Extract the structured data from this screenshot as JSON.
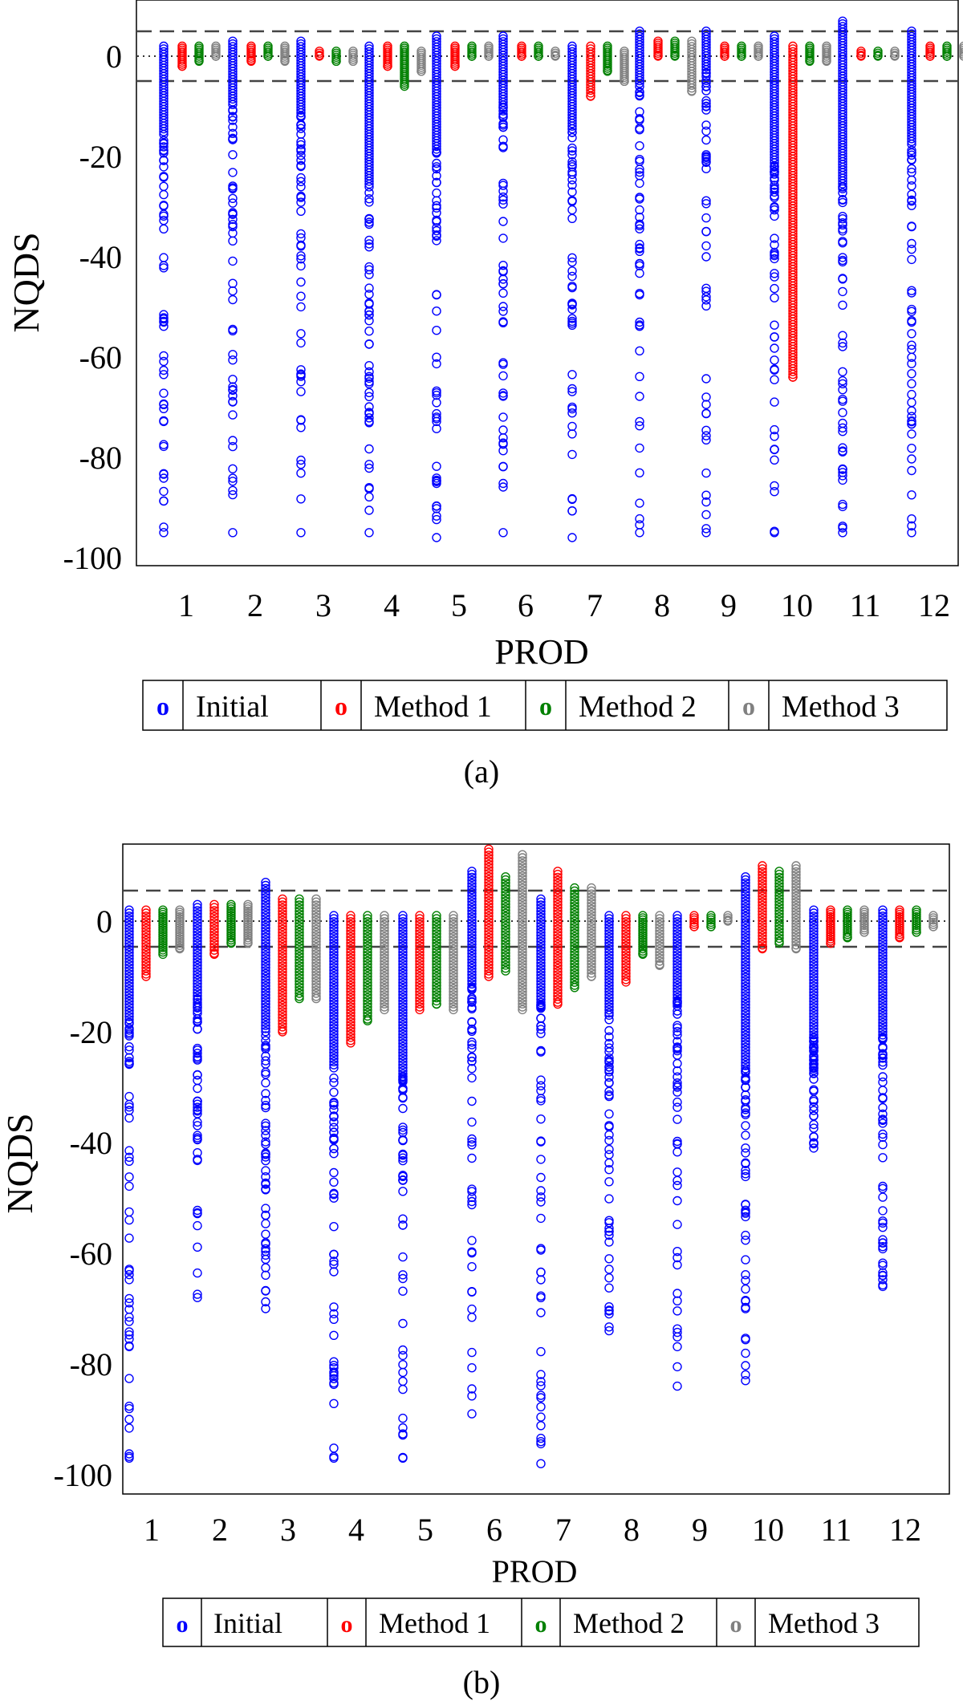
{
  "figure": {
    "panel_labels": [
      "(a)",
      "(b)"
    ]
  },
  "legend": {
    "entries": [
      "Initial",
      "Method 1",
      "Method 2",
      "Method 3"
    ],
    "markers": [
      "o",
      "o",
      "o",
      "o"
    ],
    "colors": [
      "#0000ff",
      "#ff0000",
      "#008000",
      "#808080"
    ]
  },
  "chart_data": [
    {
      "type": "scatter",
      "title": "",
      "xlabel": "PROD",
      "ylabel": "NQDS",
      "ylim": [
        -100,
        10
      ],
      "yticks": [
        0,
        -20,
        -40,
        -60,
        -80,
        -100
      ],
      "categories": [
        "1",
        "2",
        "3",
        "4",
        "5",
        "6",
        "7",
        "8",
        "9",
        "10",
        "11",
        "12"
      ],
      "reference_lines": {
        "dotted": [
          0
        ],
        "dashed": [
          5,
          -5
        ]
      },
      "grid": false,
      "legend_position": "bottom",
      "series": [
        {
          "name": "Initial",
          "color": "#0000ff",
          "min": [
            -95,
            -95,
            -95,
            -95,
            -96,
            -95,
            -96,
            -95,
            -95,
            -95,
            -95,
            -95
          ],
          "max": [
            2,
            3,
            3,
            2,
            4,
            4,
            2,
            5,
            5,
            4,
            7,
            5
          ],
          "dense_to": [
            -16,
            -10,
            -12,
            -26,
            -19,
            -10,
            -15,
            -5,
            -3,
            -22,
            -26,
            -18
          ]
        },
        {
          "name": "Method 1",
          "color": "#ff0000",
          "min": [
            -2,
            -1,
            0,
            -2,
            -2,
            0,
            -8,
            0,
            0,
            -64,
            0,
            0
          ],
          "max": [
            2,
            2,
            1,
            2,
            2,
            2,
            2,
            3,
            2,
            2,
            1,
            2
          ]
        },
        {
          "name": "Method 2",
          "color": "#008000",
          "min": [
            -1,
            0,
            -1,
            -6,
            0,
            0,
            -3,
            0,
            0,
            -1,
            0,
            0
          ],
          "max": [
            2,
            2,
            1,
            2,
            2,
            2,
            2,
            3,
            2,
            2,
            1,
            2
          ]
        },
        {
          "name": "Method 3",
          "color": "#808080",
          "min": [
            0,
            -1,
            -1,
            -3,
            0,
            0,
            -5,
            -7,
            0,
            -1,
            0,
            0
          ],
          "max": [
            2,
            2,
            1,
            1,
            2,
            1,
            1,
            3,
            2,
            2,
            1,
            2
          ]
        }
      ]
    },
    {
      "type": "scatter",
      "title": "",
      "xlabel": "PROD",
      "ylabel": "NQDS",
      "ylim": [
        -100,
        13
      ],
      "yticks": [
        0,
        -20,
        -40,
        -60,
        -80,
        -100
      ],
      "categories": [
        "1",
        "2",
        "3",
        "4",
        "5",
        "6",
        "7",
        "8",
        "9",
        "10",
        "11",
        "12"
      ],
      "reference_lines": {
        "dotted": [
          0
        ],
        "dashed": [
          5,
          -5
        ]
      },
      "grid": false,
      "legend_position": "bottom",
      "series": [
        {
          "name": "Initial",
          "color": "#0000ff",
          "min": [
            -97,
            -68,
            -70,
            -97,
            -97,
            -89,
            -98,
            -74,
            -84,
            -83,
            -41,
            -66
          ],
          "max": [
            2,
            3,
            7,
            1,
            1,
            9,
            4,
            1,
            1,
            8,
            2,
            2
          ],
          "dense_to": [
            -18,
            -14,
            -20,
            -27,
            -28,
            -12,
            -15,
            -17,
            -14,
            -27,
            -21,
            -21
          ]
        },
        {
          "name": "Method 1",
          "color": "#ff0000",
          "min": [
            -10,
            -6,
            -20,
            -22,
            -16,
            -10,
            -15,
            -11,
            -1,
            -5,
            -4,
            -3
          ],
          "max": [
            2,
            3,
            4,
            1,
            1,
            13,
            9,
            1,
            1,
            10,
            2,
            2
          ]
        },
        {
          "name": "Method 2",
          "color": "#008000",
          "min": [
            -6,
            -4,
            -14,
            -18,
            -15,
            -9,
            -12,
            -6,
            -1,
            -4,
            -3,
            -2
          ],
          "max": [
            2,
            3,
            4,
            1,
            1,
            8,
            6,
            1,
            1,
            9,
            2,
            2
          ]
        },
        {
          "name": "Method 3",
          "color": "#808080",
          "min": [
            -5,
            -4,
            -14,
            -16,
            -16,
            -16,
            -10,
            -8,
            0,
            -5,
            -2,
            -1
          ],
          "max": [
            2,
            3,
            4,
            1,
            1,
            12,
            6,
            1,
            1,
            10,
            2,
            1
          ]
        }
      ]
    }
  ]
}
